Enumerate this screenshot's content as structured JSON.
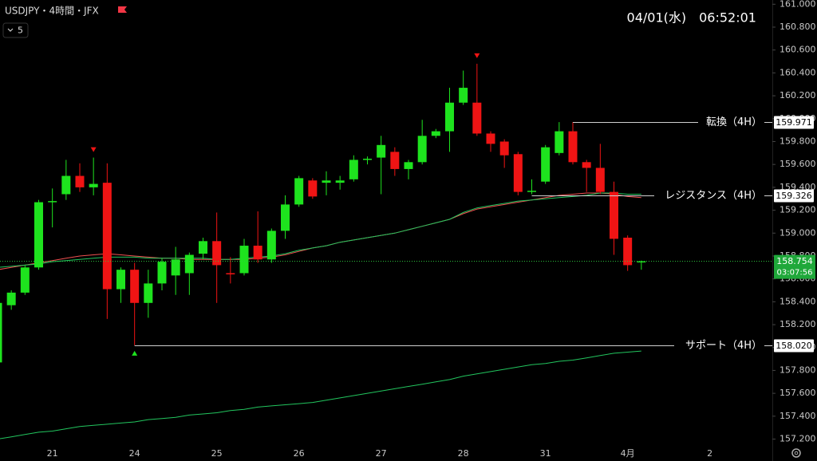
{
  "chart_data": {
    "type": "candlestick",
    "symbol": "USDJPY・4時間・JFX",
    "interval": "5",
    "datetime": "04/01(水)　06:52:01",
    "countdown": "03:07:56",
    "up_color": "#1ee31e",
    "down_color": "#f01414",
    "categories": [
      null,
      null,
      null,
      null,
      "21",
      null,
      null,
      null,
      null,
      null,
      "24",
      null,
      null,
      null,
      null,
      null,
      "25",
      null,
      null,
      null,
      null,
      null,
      "26",
      null,
      null,
      null,
      null,
      null,
      "27",
      null,
      null,
      null,
      null,
      null,
      "28",
      null,
      null,
      null,
      null,
      null,
      "31",
      null,
      null,
      null,
      null,
      null,
      "4月",
      null,
      null,
      null,
      null,
      null,
      "2",
      null,
      null,
      null,
      null
    ],
    "open": [
      157.87,
      158.37,
      158.48,
      158.7,
      159.27,
      159.34,
      159.5,
      159.4,
      159.44,
      158.51,
      158.68,
      158.39,
      158.56,
      158.63,
      158.65,
      158.82,
      158.93,
      158.65,
      158.65,
      158.89,
      158.77,
      159.02,
      159.25,
      159.46,
      159.44,
      159.44,
      159.47,
      159.64,
      159.66,
      159.71,
      159.56,
      159.62,
      159.85,
      159.89,
      160.14,
      160.14,
      159.87,
      159.8,
      159.69,
      159.36,
      159.45,
      159.7,
      159.89,
      159.62,
      159.57,
      159.36,
      158.96,
      158.75,
      null,
      null,
      null,
      null,
      null,
      null,
      null,
      null,
      null
    ],
    "high": [
      158.4,
      158.5,
      158.72,
      159.29,
      159.39,
      159.64,
      159.61,
      159.66,
      159.61,
      158.7,
      158.74,
      158.68,
      158.78,
      158.88,
      158.83,
      158.96,
      159.18,
      158.79,
      158.95,
      159.19,
      159.04,
      159.33,
      159.5,
      159.48,
      159.54,
      159.5,
      159.68,
      159.67,
      159.85,
      159.75,
      159.64,
      159.99,
      159.91,
      160.27,
      160.42,
      160.48,
      159.89,
      159.82,
      159.71,
      159.47,
      159.77,
      159.97,
      159.971,
      159.64,
      159.78,
      159.45,
      158.98,
      158.76,
      null,
      null,
      null,
      null,
      null,
      null,
      null,
      null,
      null
    ],
    "low": [
      157.86,
      158.33,
      158.46,
      158.68,
      159.05,
      159.29,
      159.36,
      159.33,
      158.25,
      158.39,
      158.02,
      158.26,
      158.5,
      158.46,
      158.46,
      158.77,
      158.39,
      158.56,
      158.63,
      158.74,
      158.74,
      158.95,
      159.23,
      159.3,
      159.33,
      159.38,
      159.45,
      159.6,
      159.34,
      159.5,
      159.47,
      159.6,
      159.83,
      159.71,
      160.12,
      159.85,
      159.71,
      159.57,
      159.33,
      159.34,
      159.43,
      159.68,
      159.6,
      159.36,
      159.34,
      158.81,
      158.67,
      158.68,
      null,
      null,
      null,
      null,
      null,
      null,
      null,
      null,
      null
    ],
    "close": [
      158.39,
      158.48,
      158.7,
      159.27,
      159.28,
      159.5,
      159.4,
      159.43,
      158.51,
      158.68,
      158.39,
      158.56,
      158.75,
      158.77,
      158.81,
      158.93,
      158.72,
      158.64,
      158.89,
      158.77,
      159.02,
      159.25,
      159.48,
      159.32,
      159.46,
      159.46,
      159.64,
      159.65,
      159.77,
      159.56,
      159.62,
      159.85,
      159.89,
      160.14,
      160.27,
      159.87,
      159.78,
      159.68,
      159.36,
      159.37,
      159.75,
      159.89,
      159.62,
      159.57,
      159.36,
      158.95,
      158.72,
      158.754,
      null,
      null,
      null,
      null,
      null,
      null,
      null,
      null,
      null
    ],
    "series": [
      {
        "color": "#f05050",
        "values": [
          158.68,
          158.7,
          158.72,
          158.74,
          158.76,
          158.78,
          158.8,
          158.81,
          158.82,
          158.81,
          158.8,
          158.79,
          158.78,
          158.78,
          158.77,
          158.77,
          158.77,
          158.77,
          158.77,
          158.78,
          158.79,
          158.81,
          158.84,
          158.87,
          158.89,
          158.92,
          158.94,
          158.96,
          158.98,
          159.0,
          159.03,
          159.06,
          159.09,
          159.12,
          159.17,
          159.21,
          159.23,
          159.25,
          159.27,
          159.29,
          159.31,
          159.33,
          159.34,
          159.35,
          159.35,
          159.34,
          159.32,
          159.31,
          null,
          null,
          null,
          null,
          null,
          null,
          null,
          null,
          null
        ]
      },
      {
        "color": "#22c55e",
        "values": [
          158.7,
          158.71,
          158.72,
          158.73,
          158.75,
          158.76,
          158.77,
          158.78,
          158.79,
          158.79,
          158.79,
          158.78,
          158.78,
          158.78,
          158.78,
          158.78,
          158.77,
          158.77,
          158.78,
          158.79,
          158.8,
          158.82,
          158.85,
          158.87,
          158.89,
          158.92,
          158.94,
          158.96,
          158.98,
          159.0,
          159.03,
          159.06,
          159.09,
          159.12,
          159.18,
          159.22,
          159.24,
          159.26,
          159.28,
          159.29,
          159.3,
          159.31,
          159.32,
          159.33,
          159.35,
          159.35,
          159.34,
          159.34,
          null,
          null,
          null,
          null,
          null,
          null,
          null,
          null,
          null
        ]
      },
      {
        "color": "#22c55e",
        "values": [
          157.2,
          157.22,
          157.24,
          157.26,
          157.27,
          157.29,
          157.31,
          157.32,
          157.33,
          157.34,
          157.35,
          157.37,
          157.38,
          157.39,
          157.41,
          157.42,
          157.43,
          157.45,
          157.46,
          157.48,
          157.49,
          157.5,
          157.51,
          157.52,
          157.54,
          157.56,
          157.58,
          157.6,
          157.62,
          157.64,
          157.66,
          157.68,
          157.7,
          157.72,
          157.75,
          157.77,
          157.79,
          157.81,
          157.83,
          157.85,
          157.86,
          157.88,
          157.89,
          157.91,
          157.93,
          157.95,
          157.96,
          157.97,
          null,
          null,
          null,
          null,
          null,
          null,
          null,
          null,
          null
        ]
      }
    ],
    "levels": [
      {
        "label": "転換（4H）",
        "price": 159.971
      },
      {
        "label": "レジスタンス（4H）",
        "price": 159.326
      },
      {
        "label": "サポート（4H）",
        "price": {
          "value": 158.02,
          "label": "158.020"
        }
      }
    ],
    "ylim": [
      157.134,
      161.037
    ],
    "yticks": [
      {
        "value": 157.2,
        "label": "157.200"
      },
      {
        "value": 157.4,
        "label": "157.400"
      },
      {
        "value": 157.6,
        "label": "157.600"
      },
      {
        "value": 157.8,
        "label": "157.800"
      },
      {
        "value": 158,
        "label": "158.000"
      },
      {
        "value": 158.2,
        "label": "158.200"
      },
      {
        "value": 158.4,
        "label": "158.400"
      },
      {
        "value": 158.6,
        "label": "158.600"
      },
      {
        "value": 158.8,
        "label": "158.800"
      },
      {
        "value": 159,
        "label": "159.000"
      },
      {
        "value": 159.2,
        "label": "159.200"
      },
      {
        "value": 159.4,
        "label": "159.400"
      },
      {
        "value": 159.6,
        "label": "159.600"
      },
      {
        "value": 159.8,
        "label": "159.800"
      },
      {
        "value": 160,
        "label": "160.000"
      },
      {
        "value": 160.2,
        "label": "160.200"
      },
      {
        "value": 160.4,
        "label": "160.400"
      },
      {
        "value": 160.6,
        "label": "160.600"
      },
      {
        "value": 160.8,
        "label": "160.800"
      },
      {
        "value": 161,
        "label": "161.000"
      }
    ]
  }
}
